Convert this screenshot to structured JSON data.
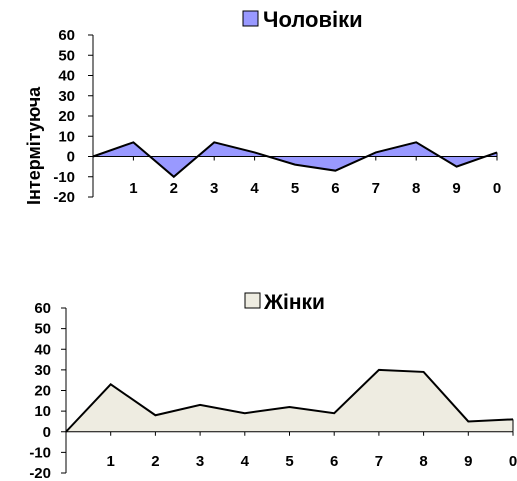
{
  "chart_data": [
    {
      "type": "area",
      "legend": "Чоловіки",
      "ylabel": "Інтермітуюча",
      "categories": [
        "1",
        "2",
        "3",
        "4",
        "5",
        "6",
        "7",
        "8",
        "9",
        "0"
      ],
      "x_start": 0,
      "y_start": 0,
      "values": [
        7,
        -10,
        7,
        2,
        -4,
        -7,
        2,
        7,
        -5,
        2
      ],
      "ylim": [
        -20,
        60
      ],
      "yticks": [
        "60",
        "50",
        "40",
        "30",
        "20",
        "10",
        "0",
        "-10",
        "-20"
      ],
      "fill_color": "#9999ff",
      "legend_placement": "top"
    },
    {
      "type": "area",
      "legend": "Жінки",
      "categories": [
        "1",
        "2",
        "3",
        "4",
        "5",
        "6",
        "7",
        "8",
        "9",
        "0"
      ],
      "x_start": 0,
      "y_start": 0,
      "values": [
        23,
        8,
        13,
        9,
        12,
        9,
        30,
        29,
        5,
        6
      ],
      "ylim": [
        -20,
        60
      ],
      "yticks": [
        "60",
        "50",
        "40",
        "30",
        "20",
        "10",
        "0",
        "-10",
        "-20"
      ],
      "fill_color": "#eeece1",
      "legend_placement": "top"
    }
  ]
}
